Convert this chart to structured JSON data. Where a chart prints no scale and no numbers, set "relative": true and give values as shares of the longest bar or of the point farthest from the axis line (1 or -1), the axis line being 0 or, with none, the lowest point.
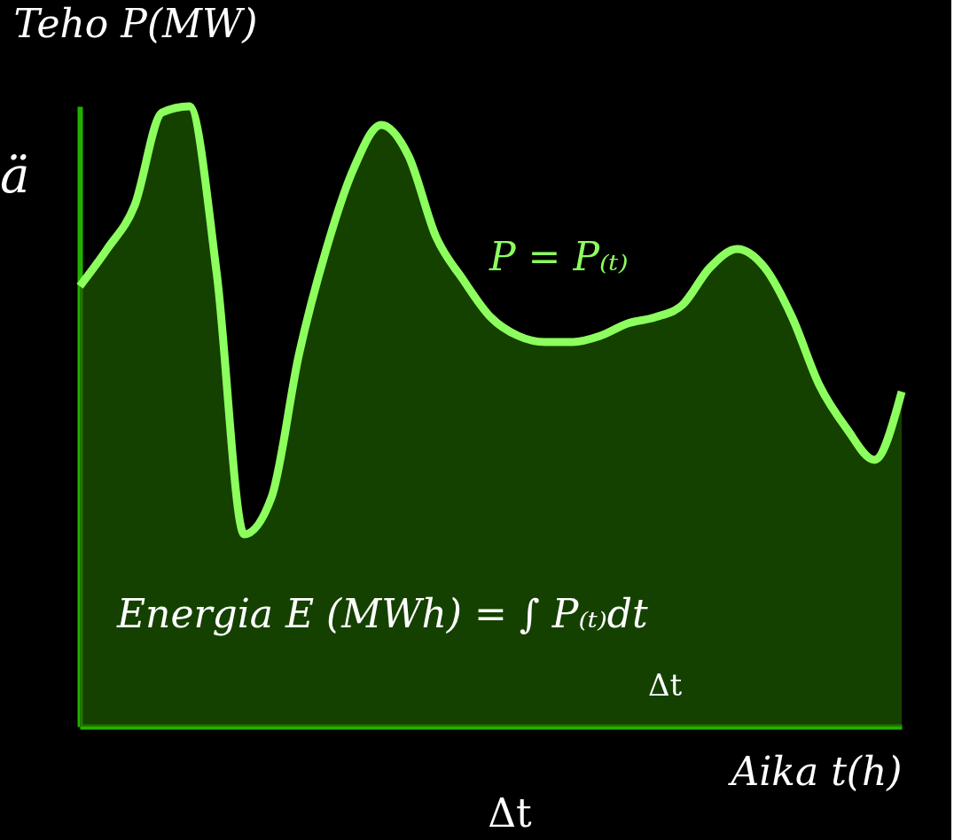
{
  "chart_data": {
    "type": "area",
    "relative": true,
    "ylabel": "Teho P(MW)",
    "xlabel": "Aika t(h)",
    "categories": [
      null,
      null,
      null,
      null,
      null,
      null,
      null,
      null,
      null,
      null,
      null,
      null,
      null,
      null,
      null,
      null,
      null,
      null,
      null,
      null,
      null,
      null,
      null,
      null,
      null,
      null,
      null,
      null,
      null,
      null,
      null
    ],
    "series": [
      {
        "color": "#8cff5e",
        "values": [
          0.71,
          0.77,
          0.84,
          0.99,
          1.0,
          0.73,
          0.31,
          0.37,
          0.6,
          0.77,
          0.9,
          0.97,
          0.92,
          0.79,
          0.72,
          0.66,
          0.63,
          0.62,
          0.62,
          0.63,
          0.65,
          0.66,
          0.68,
          0.74,
          0.77,
          0.74,
          0.66,
          0.55,
          0.48,
          0.43,
          0.54
        ]
      }
    ],
    "annotations": [
      "P = P₍ₜ₎",
      "Energia E (MWh) = ∫ P₍ₜ₎dt",
      "Δt",
      "Δt",
      "ä"
    ],
    "grid": false
  }
}
